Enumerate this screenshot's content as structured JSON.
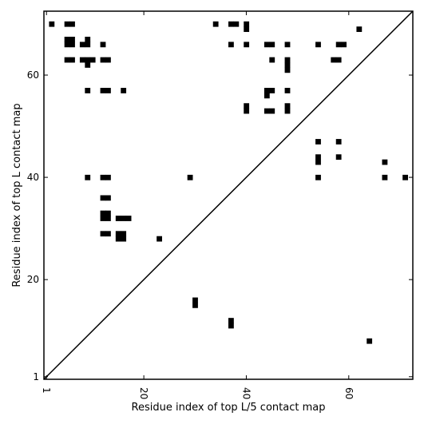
{
  "chart_data": {
    "type": "heatmap",
    "title": "",
    "xlabel": "Residue index of top L/5 contact map",
    "ylabel": "Residue index of top L contact map",
    "xlim": [
      0.5,
      72.5
    ],
    "ylim": [
      0.5,
      72.5
    ],
    "x_ticks": [
      {
        "value": 1,
        "label": "1"
      },
      {
        "value": 20,
        "label": "20"
      },
      {
        "value": 40,
        "label": "40"
      },
      {
        "value": 60,
        "label": "60"
      }
    ],
    "y_ticks": [
      {
        "value": 1,
        "label": "1"
      },
      {
        "value": 20,
        "label": "20"
      },
      {
        "value": 40,
        "label": "40"
      },
      {
        "value": 60,
        "label": "60"
      }
    ],
    "diagonal": [
      [
        1,
        1
      ],
      [
        72,
        72
      ]
    ],
    "colors": {
      "contact": "#000000",
      "background": "#ffffff",
      "frame": "#000000"
    },
    "contacts_top_L": [
      [
        2,
        70
      ],
      [
        5,
        70
      ],
      [
        6,
        70
      ],
      [
        34,
        70
      ],
      [
        37,
        70
      ],
      [
        38,
        70
      ],
      [
        40,
        70
      ],
      [
        40,
        69
      ],
      [
        62,
        69
      ],
      [
        5,
        67
      ],
      [
        6,
        67
      ],
      [
        9,
        67
      ],
      [
        5,
        66
      ],
      [
        6,
        66
      ],
      [
        8,
        66
      ],
      [
        9,
        66
      ],
      [
        12,
        66
      ],
      [
        37,
        66
      ],
      [
        40,
        66
      ],
      [
        44,
        66
      ],
      [
        45,
        66
      ],
      [
        48,
        66
      ],
      [
        54,
        66
      ],
      [
        58,
        66
      ],
      [
        59,
        66
      ],
      [
        5,
        63
      ],
      [
        6,
        63
      ],
      [
        8,
        63
      ],
      [
        9,
        63
      ],
      [
        10,
        63
      ],
      [
        12,
        63
      ],
      [
        13,
        63
      ],
      [
        45,
        63
      ],
      [
        48,
        63
      ],
      [
        57,
        63
      ],
      [
        58,
        63
      ],
      [
        9,
        62
      ],
      [
        48,
        62
      ],
      [
        48,
        61
      ],
      [
        9,
        57
      ],
      [
        12,
        57
      ],
      [
        13,
        57
      ],
      [
        16,
        57
      ],
      [
        44,
        57
      ],
      [
        45,
        57
      ],
      [
        48,
        57
      ],
      [
        44,
        56
      ],
      [
        40,
        54
      ],
      [
        48,
        54
      ],
      [
        40,
        53
      ],
      [
        44,
        53
      ],
      [
        45,
        53
      ],
      [
        48,
        53
      ],
      [
        54,
        47
      ],
      [
        58,
        47
      ],
      [
        54,
        44
      ],
      [
        58,
        44
      ],
      [
        54,
        43
      ],
      [
        67,
        43
      ],
      [
        9,
        40
      ],
      [
        12,
        40
      ],
      [
        13,
        40
      ],
      [
        29,
        40
      ],
      [
        54,
        40
      ],
      [
        67,
        40
      ],
      [
        71,
        40
      ],
      [
        12,
        36
      ],
      [
        13,
        36
      ],
      [
        12,
        33
      ],
      [
        13,
        33
      ],
      [
        12,
        32
      ],
      [
        13,
        32
      ],
      [
        15,
        32
      ],
      [
        16,
        32
      ],
      [
        17,
        32
      ],
      [
        12,
        29
      ],
      [
        13,
        29
      ],
      [
        15,
        29
      ],
      [
        16,
        29
      ],
      [
        15,
        28
      ],
      [
        16,
        28
      ],
      [
        23,
        28
      ]
    ],
    "contacts_top_L5": [
      [
        30,
        16
      ],
      [
        30,
        15
      ],
      [
        37,
        12
      ],
      [
        37,
        11
      ],
      [
        64,
        8
      ]
    ]
  }
}
